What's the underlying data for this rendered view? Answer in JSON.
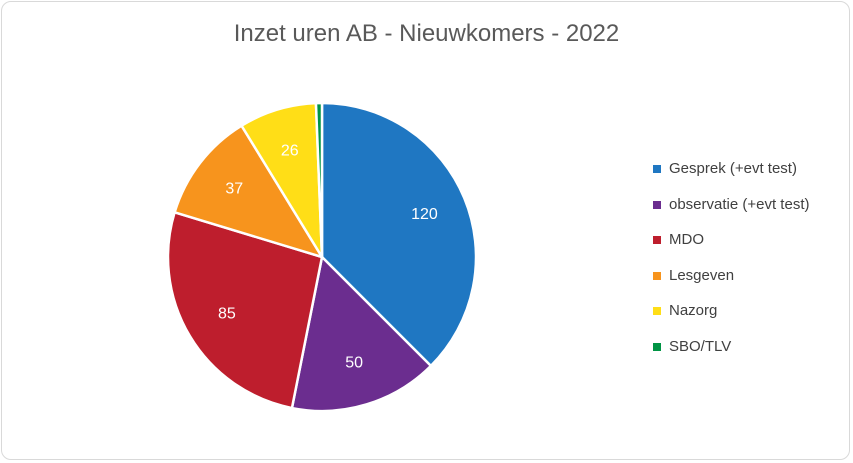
{
  "chart_data": {
    "type": "pie",
    "title": "Inzet uren AB - Nieuwkomers - 2022",
    "categories": [
      "Gesprek (+evt test)",
      "observatie (+evt test)",
      "MDO",
      "Lesgeven",
      "Nazorg",
      "SBO/TLV"
    ],
    "values": [
      120,
      50,
      85,
      37,
      26,
      2
    ],
    "data_labels": [
      "120",
      "50",
      "85",
      "37",
      "26",
      ""
    ],
    "colors": [
      "#1f77c2",
      "#6b2d8f",
      "#be1e2d",
      "#f7941d",
      "#ffde17",
      "#009444"
    ],
    "start_angle_deg": 0,
    "direction": "clockwise",
    "legend_position": "right"
  }
}
